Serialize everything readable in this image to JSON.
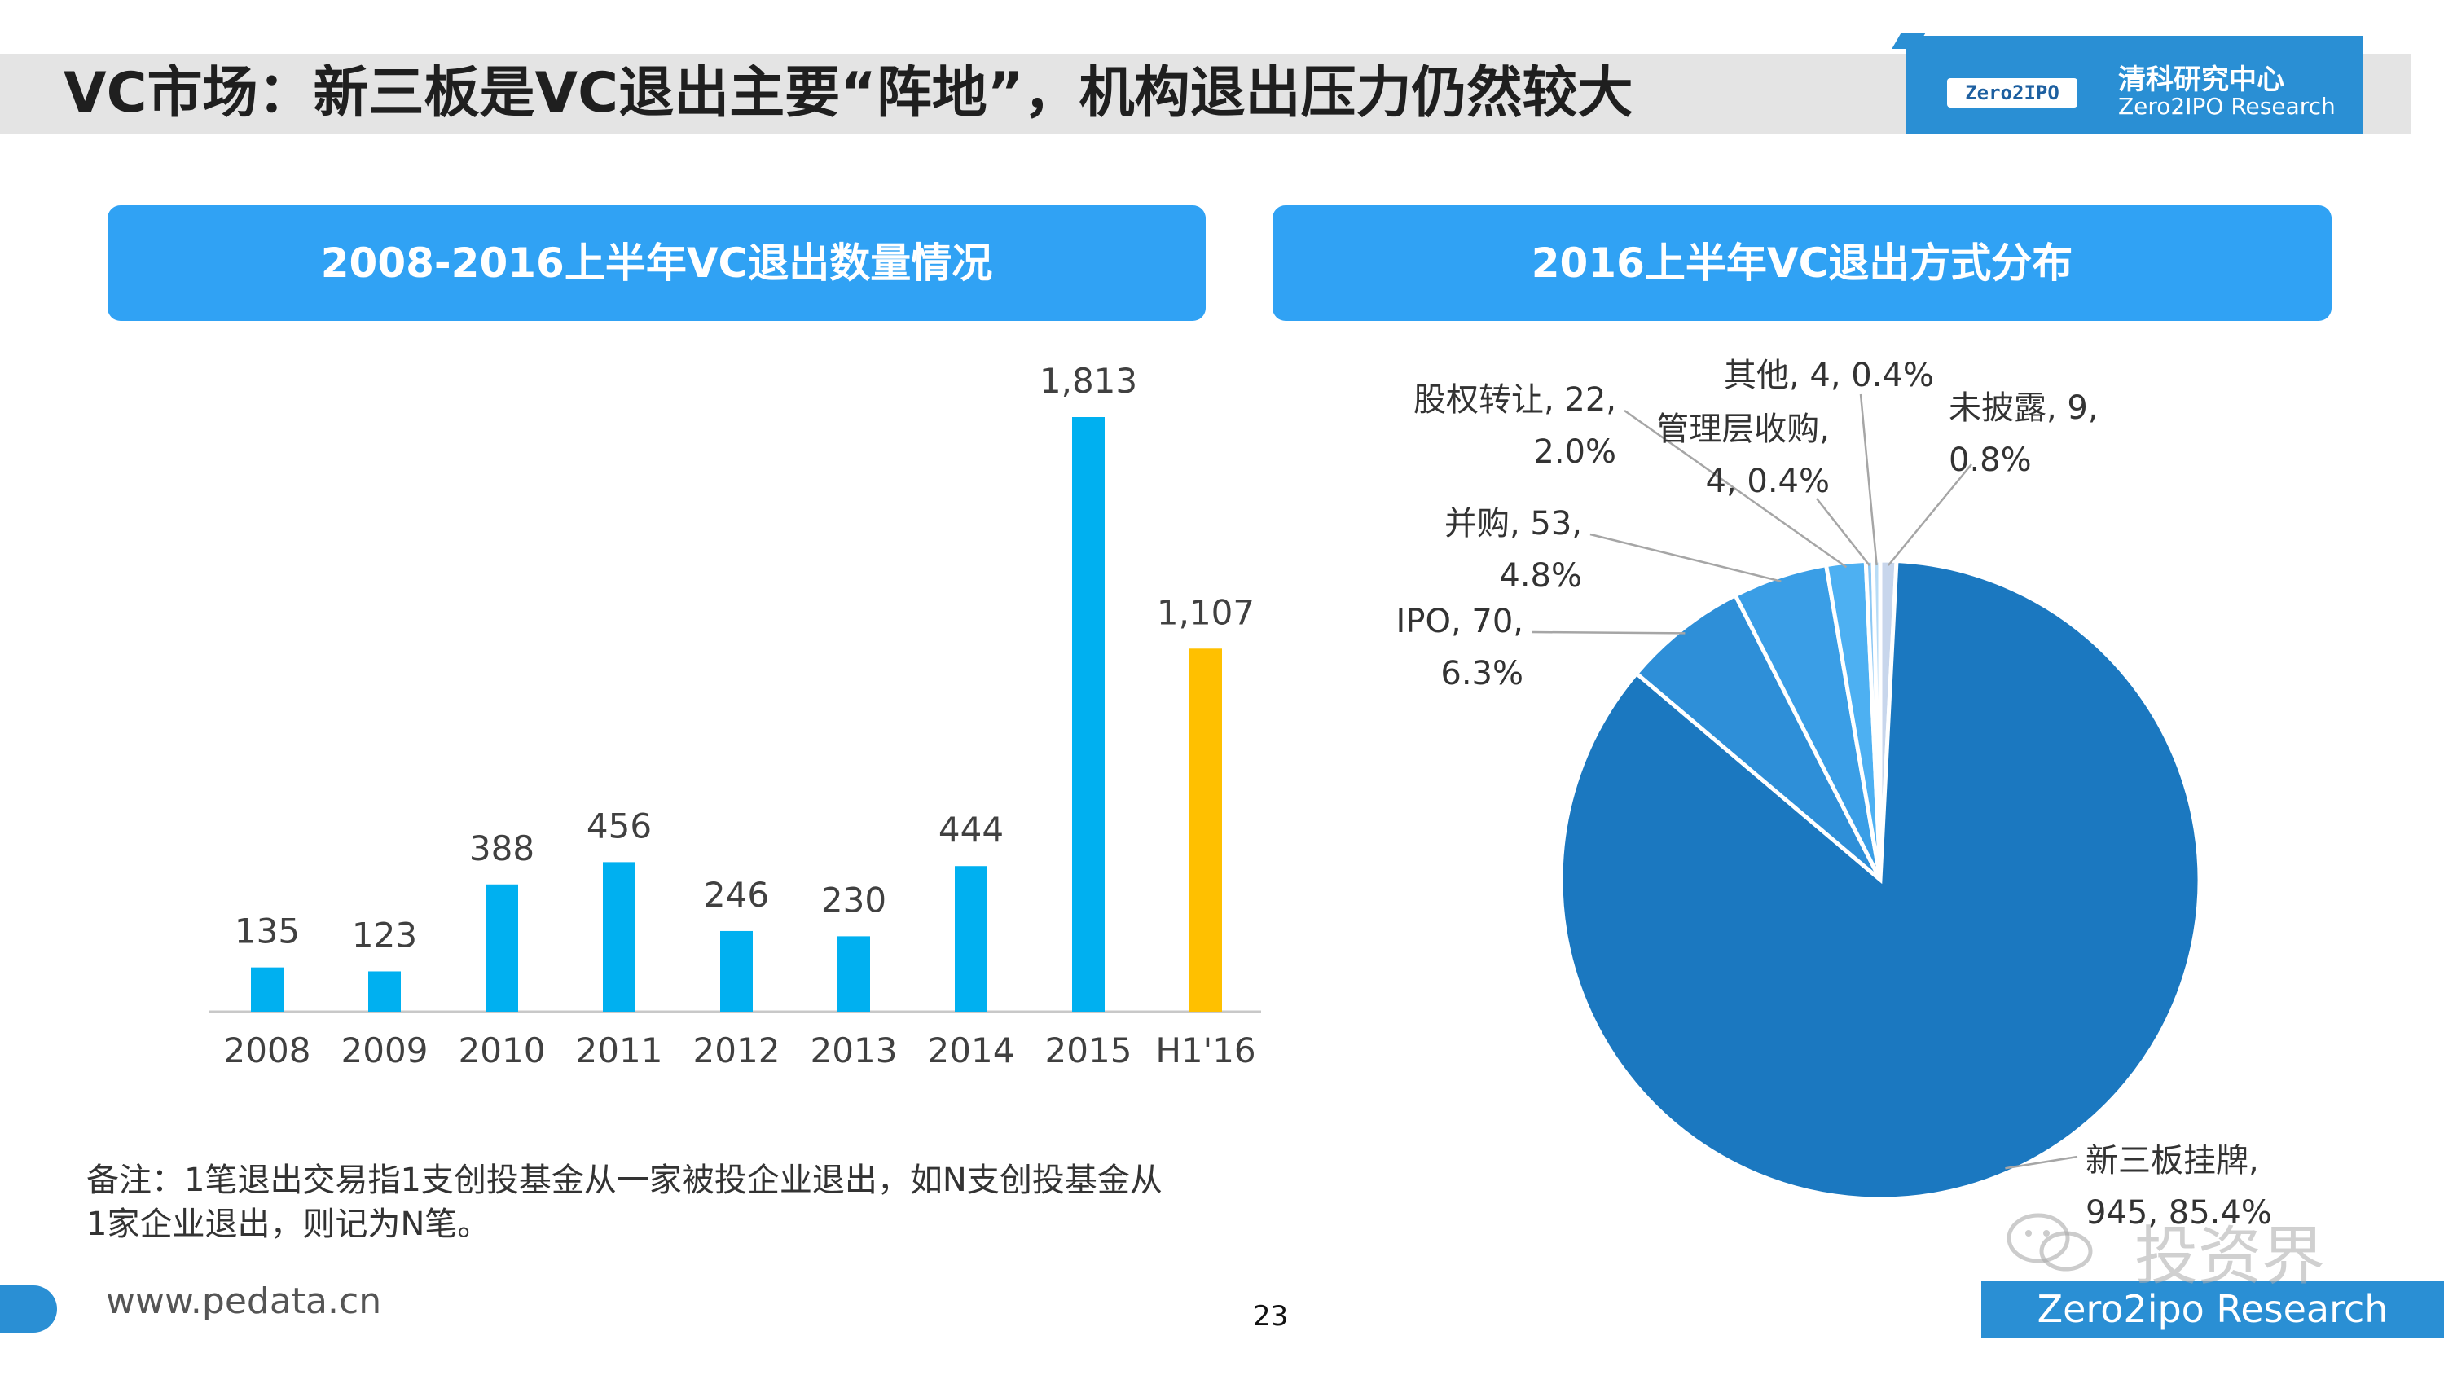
{
  "page": {
    "title": "VC市场：新三板是VC退出主要“阵地”，机构退出压力仍然较大",
    "logo_badge": "Zero2IPO",
    "logo_cn": "清科研究中心",
    "logo_en": "Zero2IPO Research",
    "note_line1": "备注：1笔退出交易指1支创投基金从一家被投企业退出，如N支创投基金从",
    "note_line2": "1家企业退出，则记为N笔。",
    "footer_url": "www.pedata.cn",
    "page_number": "23",
    "footer_brand": "Zero2ipo Research",
    "watermark": "投资界"
  },
  "chart_data": [
    {
      "type": "bar",
      "title": "2008-2016上半年VC退出数量情况",
      "categories": [
        "2008",
        "2009",
        "2010",
        "2011",
        "2012",
        "2013",
        "2014",
        "2015",
        "H1'16"
      ],
      "values": [
        135,
        123,
        388,
        456,
        246,
        230,
        444,
        1813,
        1107
      ],
      "value_labels": [
        "135",
        "123",
        "388",
        "456",
        "246",
        "230",
        "444",
        "1,813",
        "1,107"
      ],
      "colors": [
        "#00b0f0",
        "#00b0f0",
        "#00b0f0",
        "#00b0f0",
        "#00b0f0",
        "#00b0f0",
        "#00b0f0",
        "#00b0f0",
        "#ffc000"
      ],
      "ylim": [
        0,
        1813
      ]
    },
    {
      "type": "pie",
      "title": "2016上半年VC退出方式分布",
      "slices": [
        {
          "name": "新三板挂牌",
          "value": 945,
          "pct": 85.4,
          "label_lines": [
            "新三板挂牌,",
            "945, 85.4%"
          ],
          "color": "#1b78c0"
        },
        {
          "name": "IPO",
          "value": 70,
          "pct": 6.3,
          "label_lines": [
            "IPO, 70,",
            "6.3%"
          ],
          "color": "#2e8fd8"
        },
        {
          "name": "并购",
          "value": 53,
          "pct": 4.8,
          "label_lines": [
            "并购, 53,",
            "4.8%"
          ],
          "color": "#3a9ee6"
        },
        {
          "name": "股权转让",
          "value": 22,
          "pct": 2.0,
          "label_lines": [
            "股权转让, 22,",
            "2.0%"
          ],
          "color": "#4db0f2"
        },
        {
          "name": "管理层收购",
          "value": 4,
          "pct": 0.4,
          "label_lines": [
            "管理层收购,",
            "4, 0.4%"
          ],
          "color": "#8cc8f4"
        },
        {
          "name": "其他",
          "value": 4,
          "pct": 0.4,
          "label_lines": [
            "其他, 4, 0.4%"
          ],
          "color": "#b8dcf6"
        },
        {
          "name": "未披露",
          "value": 9,
          "pct": 0.8,
          "label_lines": [
            "未披露, 9,",
            "0.8%"
          ],
          "color": "#c8d6ec"
        }
      ]
    }
  ]
}
